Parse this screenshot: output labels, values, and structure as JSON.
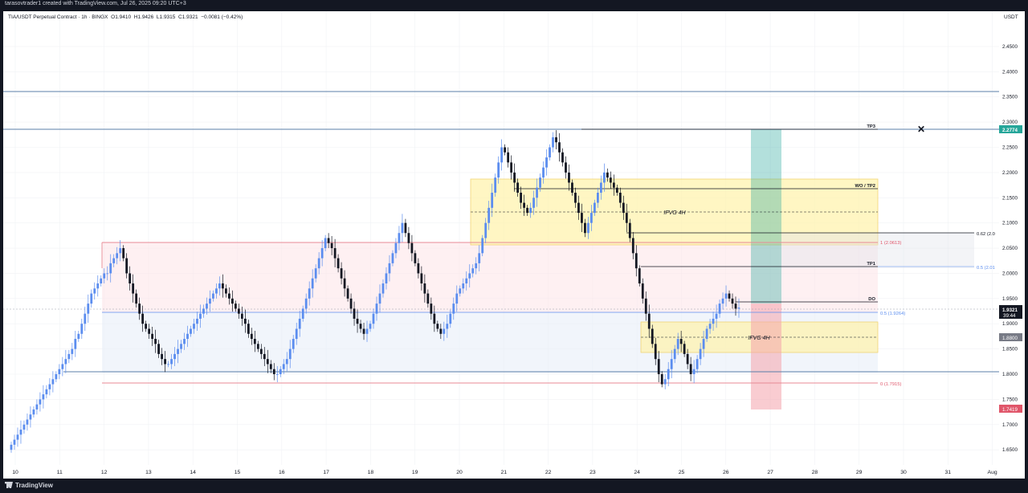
{
  "window_title": "tarasovtrader1 created with TradingView.com, Jul 26, 2025 09:20 UTC+3",
  "footer_brand": "TradingView",
  "legend": {
    "symbol": "TIA/USDT Perpetual Contract · 1h · BINGX",
    "open": "O1.9410",
    "high": "H1.9426",
    "low": "L1.9315",
    "close": "C1.9321",
    "change": "−0.0081 (−0.42%)"
  },
  "currency": "USDT",
  "price_axis": [
    "2.4500",
    "2.4000",
    "2.3500",
    "2.3000",
    "2.2500",
    "2.2000",
    "2.1500",
    "2.1000",
    "2.0500",
    "2.0000",
    "1.9500",
    "1.9000",
    "1.8500",
    "1.8000",
    "1.7500",
    "1.7000",
    "1.6500"
  ],
  "time_axis": [
    "10",
    "11",
    "12",
    "13",
    "14",
    "15",
    "16",
    "17",
    "18",
    "19",
    "20",
    "21",
    "22",
    "23",
    "24",
    "25",
    "26",
    "27",
    "28",
    "29",
    "30",
    "31",
    "Aug"
  ],
  "price_tags": {
    "tp3_price": "2.2774",
    "current_price": "1.9321",
    "countdown": "39:44",
    "box_price": "1.8800",
    "stop_price": "1.7419"
  },
  "annotations": {
    "tp3": "TP3",
    "wo_tp2": "WO / TP2",
    "ifvg_upper": "IFVG 4H",
    "ifvg_lower": "IFVG 4H",
    "fib_062": "0.62 (2.0",
    "fib_1": "1 (2.0613)",
    "tp1": "TP1",
    "fib_05_right": "0.5 (2.01",
    "do": "DO",
    "fib_05": "0.5 (1.9264)",
    "fib_0": "0 (1.7915)"
  },
  "colors": {
    "up": "#5b8def",
    "down": "#131722",
    "target_zone": "#26a69a",
    "stop_zone": "#f4a3ab",
    "fvg_zone": "#fff3b0",
    "range_top_zone": "#fde4e8",
    "range_bottom_zone": "#e8eef8"
  },
  "chart_data": {
    "type": "candlestick",
    "symbol": "TIA/USDT Perpetual Contract",
    "interval": "1h",
    "ylim": [
      1.62,
      2.52
    ],
    "x_day_range": [
      10,
      32
    ],
    "levels": [
      {
        "label": "1",
        "value": 2.0613
      },
      {
        "label": "0.5",
        "value": 1.9264
      },
      {
        "label": "0",
        "value": 1.7915
      },
      {
        "label": "TP3",
        "value": 2.2774
      }
    ],
    "close": [
      1.66,
      1.67,
      1.68,
      1.69,
      1.7,
      1.71,
      1.72,
      1.73,
      1.74,
      1.75,
      1.76,
      1.77,
      1.78,
      1.79,
      1.8,
      1.81,
      1.82,
      1.83,
      1.84,
      1.85,
      1.87,
      1.88,
      1.9,
      1.92,
      1.94,
      1.96,
      1.97,
      1.98,
      1.99,
      2.0,
      2.0,
      2.02,
      2.03,
      2.04,
      2.05,
      2.03,
      2.0,
      1.98,
      1.96,
      1.94,
      1.92,
      1.9,
      1.89,
      1.88,
      1.87,
      1.86,
      1.84,
      1.83,
      1.82,
      1.82,
      1.83,
      1.84,
      1.85,
      1.86,
      1.87,
      1.88,
      1.89,
      1.9,
      1.91,
      1.92,
      1.93,
      1.94,
      1.95,
      1.96,
      1.97,
      1.98,
      1.97,
      1.96,
      1.95,
      1.94,
      1.93,
      1.92,
      1.91,
      1.9,
      1.88,
      1.87,
      1.86,
      1.85,
      1.84,
      1.83,
      1.82,
      1.81,
      1.8,
      1.8,
      1.81,
      1.82,
      1.83,
      1.85,
      1.87,
      1.89,
      1.91,
      1.93,
      1.95,
      1.97,
      1.99,
      2.01,
      2.03,
      2.05,
      2.07,
      2.06,
      2.05,
      2.03,
      2.01,
      1.99,
      1.97,
      1.95,
      1.93,
      1.91,
      1.9,
      1.89,
      1.88,
      1.89,
      1.9,
      1.92,
      1.94,
      1.96,
      1.98,
      2.0,
      2.02,
      2.04,
      2.06,
      2.08,
      2.1,
      2.08,
      2.06,
      2.04,
      2.02,
      2.0,
      1.98,
      1.96,
      1.94,
      1.92,
      1.9,
      1.89,
      1.88,
      1.89,
      1.9,
      1.92,
      1.94,
      1.96,
      1.97,
      1.98,
      1.99,
      2.0,
      2.01,
      2.02,
      2.04,
      2.07,
      2.1,
      2.13,
      2.16,
      2.19,
      2.22,
      2.25,
      2.24,
      2.22,
      2.2,
      2.18,
      2.16,
      2.14,
      2.13,
      2.12,
      2.13,
      2.15,
      2.17,
      2.19,
      2.21,
      2.23,
      2.25,
      2.27,
      2.26,
      2.24,
      2.22,
      2.2,
      2.18,
      2.16,
      2.14,
      2.12,
      2.1,
      2.08,
      2.1,
      2.12,
      2.14,
      2.16,
      2.18,
      2.2,
      2.19,
      2.18,
      2.17,
      2.16,
      2.14,
      2.12,
      2.1,
      2.07,
      2.04,
      2.01,
      1.98,
      1.95,
      1.92,
      1.89,
      1.86,
      1.83,
      1.8,
      1.78,
      1.79,
      1.81,
      1.83,
      1.85,
      1.87,
      1.86,
      1.84,
      1.82,
      1.8,
      1.81,
      1.83,
      1.85,
      1.87,
      1.89,
      1.9,
      1.91,
      1.92,
      1.94,
      1.95,
      1.96,
      1.95,
      1.94,
      1.93,
      1.9321
    ]
  }
}
